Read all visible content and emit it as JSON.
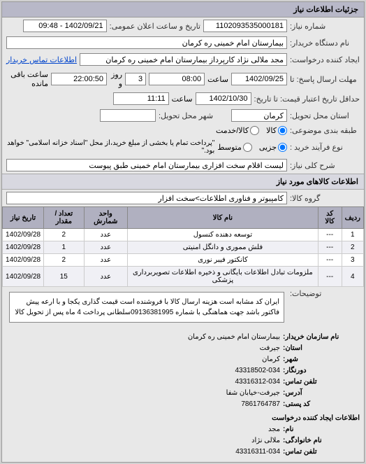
{
  "panel_title": "جزئیات اطلاعات نیاز",
  "fields": {
    "request_no_label": "شماره نیاز:",
    "request_no": "1102093535000181",
    "announce_label": "تاریخ و ساعت اعلان عمومی:",
    "announce_value": "1402/09/21 - 09:48",
    "buyer_device_label": "نام دستگاه خریدار:",
    "buyer_device": "بیمارستان امام خمینی ره کرمان",
    "requester_label": "ایجاد کننده درخواست:",
    "requester": "مجد ملالی نژاد کارپرداز بیمارستان امام خمینی ره کرمان",
    "contact_link": "اطلاعات تماس خریدار",
    "deadline_send_label": "مهلت ارسال پاسخ: تا",
    "deadline_send_date": "1402/09/25",
    "time_label": "ساعت",
    "deadline_send_time": "08:00",
    "day_label": "روز و",
    "days_remaining": "3",
    "remaining_time": "22:00:50",
    "remaining_label": "ساعت باقی مانده",
    "validity_label": "حداقل تاریخ اعتبار قیمت: تا تاریخ:",
    "validity_date": "1402/10/30",
    "validity_time": "11:11",
    "location_label": "استان محل تحویل:",
    "location": "کرمان",
    "city_label": "شهر محل تحویل:",
    "pack_label": "طبقه بندی موضوعی:",
    "pack_all": "کالا",
    "pack_part": "کالا/خدمت",
    "process_label": "نوع فرآیند خرید :",
    "process_part": "جزیی",
    "process_mid": "متوسط",
    "process_note": "\"پرداخت تمام یا بخشی از مبلغ خرید،از محل \"اسناد خزانه اسلامی\" خواهد بود.\"",
    "desc_label": "شرح کلی نیاز:",
    "desc_value": "لیست اقلام سخت افزاری بیمارستان امام خمینی طبق پیوست",
    "goods_section": "اطلاعات کالاهای مورد نیاز",
    "goods_group_label": "گروه کالا:",
    "goods_group": "کامپیوتر و فناوری اطلاعات>سخت افزار"
  },
  "table": {
    "headers": [
      "ردیف",
      "کد کالا",
      "نام کالا",
      "واحد شمارش",
      "تعداد / مقدار",
      "تاریخ نیاز"
    ],
    "rows": [
      [
        "1",
        "---",
        "توسعه دهنده کنسول",
        "عدد",
        "2",
        "1402/09/28"
      ],
      [
        "2",
        "---",
        "فلش مموری و دانگل امنیتی",
        "عدد",
        "1",
        "1402/09/28"
      ],
      [
        "3",
        "---",
        "کانکتور فیبر نوری",
        "عدد",
        "2",
        "1402/09/28"
      ],
      [
        "4",
        "---",
        "ملزومات تبادل اطلاعات بایگانی و ذخیره اطلاعات تصویربرداری پزشکی",
        "عدد",
        "15",
        "1402/09/28"
      ]
    ]
  },
  "explain": {
    "label": "توضیحات:",
    "text": "ایران کد مشابه است هزینه ارسال کالا با فروشنده است قیمت گذاری یکجا و با ارعه پیش فاکتور باشد جهت هماهنگی با شماره 09136381995سلطانی پرداخت 4 ماه پس از تحویل کالا"
  },
  "info": {
    "org_label": "نام سازمان خریدار:",
    "org": "بیمارستان امام خمینی ره کرمان",
    "province_label": "استان:",
    "province": "جیرفت",
    "city_label": "شهر:",
    "city": "کرمان",
    "fax_label": "دورنگار:",
    "fax": "43318502-034",
    "phone_label": "تلفن تماس:",
    "phone": "43316312-034",
    "address_label": "آدرس:",
    "address": "جیرفت-خیابان شفا",
    "postal_label": "کد پستی:",
    "postal": "7861764787",
    "creator_section": "اطلاعات ایجاد کننده درخواست",
    "name_label": "نام:",
    "name": "مجد",
    "family_label": "نام خانوادگی:",
    "family": "ملالی نژاد",
    "phone2_label": "تلفن تماس:",
    "phone2": "43316311-034"
  }
}
